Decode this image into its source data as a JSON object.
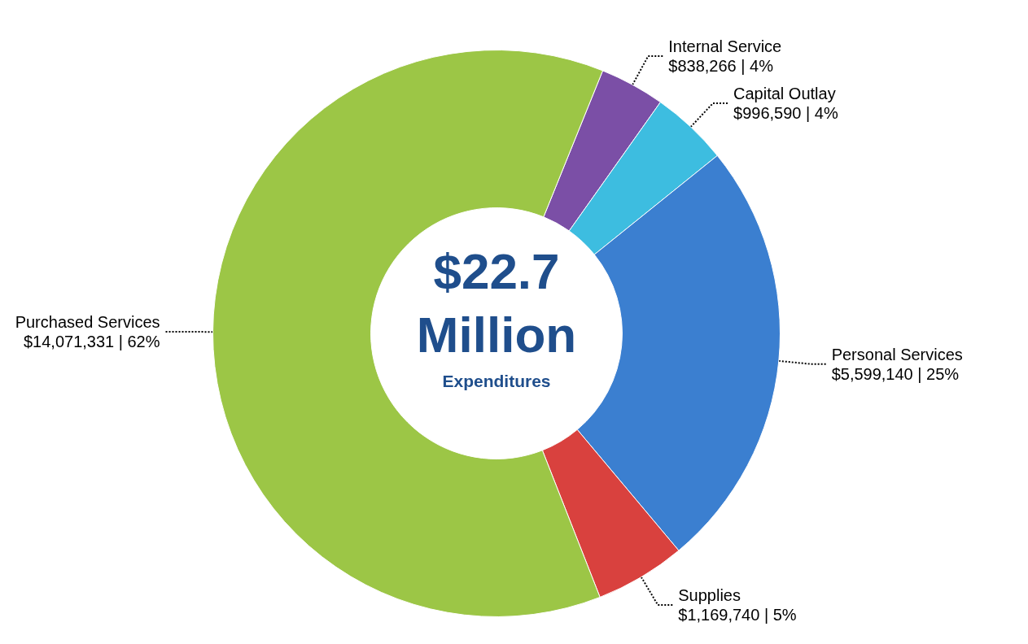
{
  "chart_data": {
    "type": "donut",
    "categories": [
      "Internal Service",
      "Capital Outlay",
      "Personal Services",
      "Supplies",
      "Purchased Services"
    ],
    "values": [
      838266,
      996590,
      5599140,
      1169740,
      14071331
    ],
    "value_labels": [
      "$838,266 | 4%",
      "$996,590 | 4%",
      "$5,599,140 | 25%",
      "$1,169,740 | 5%",
      "$14,071,331 | 62%"
    ],
    "colors": [
      "#7b4fa6",
      "#3dbde0",
      "#3b7fd0",
      "#d9413e",
      "#9cc646"
    ],
    "annotations": [
      "$22.7",
      "Million",
      "Expenditures"
    ],
    "legend": false
  }
}
